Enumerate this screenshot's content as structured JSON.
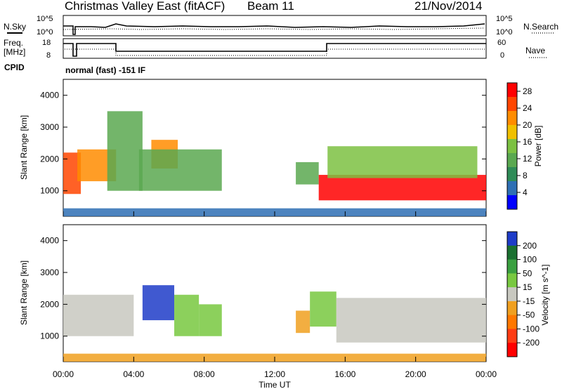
{
  "header": {
    "title": "Christmas Valley East (fitACF)",
    "beam": "Beam 11",
    "date": "21/Nov/2014"
  },
  "aux_panels": {
    "nsky_label": "N.Sky",
    "nsearch_label": "N.Search",
    "freq_label_line1": "Freq.",
    "freq_label_line2": "[MHz]",
    "nave_label": "Nave",
    "cpid_label": "CPID",
    "cpid_text": "normal (fast) -151 IF",
    "noise_tick_top": "10^5",
    "noise_tick_bottom": "10^0",
    "noise_right_tick_top": "10^5",
    "noise_right_tick_bottom": "10^0",
    "freq_tick_top": "18",
    "freq_tick_bottom": "8",
    "nave_tick_top": "60",
    "nave_tick_bottom": "0"
  },
  "colors": {
    "power_scale": [
      "#0000ff",
      "#2e6fb4",
      "#2e8b57",
      "#5aa850",
      "#7cc142",
      "#f0c000",
      "#ff8c00",
      "#ff4500",
      "#ff0000"
    ],
    "velocity_scale": [
      "#1e3cc8",
      "#1a7030",
      "#3aa040",
      "#78c840",
      "#c8c8c0",
      "#f0a020",
      "#ff7800",
      "#ff3c14",
      "#ff0000"
    ]
  },
  "chart_data": [
    {
      "type": "heatmap",
      "name": "power",
      "ylabel": "Slant Range [km]",
      "xlabel": "Time UT",
      "ylim": [
        200,
        4500
      ],
      "xlim": [
        "00:00",
        "24:00"
      ],
      "yticks": [
        "1000",
        "2000",
        "3000",
        "4000"
      ],
      "xticks": [
        "00:00",
        "04:00",
        "08:00",
        "12:00",
        "16:00",
        "20:00",
        "00:00"
      ],
      "colorbar": {
        "label": "Power [dB]",
        "ticks": [
          "4",
          "8",
          "12",
          "16",
          "20",
          "24",
          "28"
        ],
        "range": [
          0,
          30
        ]
      },
      "regions": [
        {
          "t_start": 0.0,
          "t_end": 1.0,
          "r_start": 900,
          "r_end": 2200,
          "value": 26
        },
        {
          "t_start": 0.8,
          "t_end": 3.0,
          "r_start": 1300,
          "r_end": 2300,
          "value": 20
        },
        {
          "t_start": 2.5,
          "t_end": 4.5,
          "r_start": 1000,
          "r_end": 3500,
          "value": 10
        },
        {
          "t_start": 5.0,
          "t_end": 6.5,
          "r_start": 1700,
          "r_end": 2600,
          "value": 20
        },
        {
          "t_start": 4.3,
          "t_end": 9.0,
          "r_start": 1000,
          "r_end": 2300,
          "value": 12
        },
        {
          "t_start": 13.2,
          "t_end": 14.5,
          "r_start": 1200,
          "r_end": 1900,
          "value": 10
        },
        {
          "t_start": 14.5,
          "t_end": 24.0,
          "r_start": 700,
          "r_end": 1500,
          "value": 28
        },
        {
          "t_start": 15.0,
          "t_end": 23.5,
          "r_start": 1400,
          "r_end": 2400,
          "value": 14
        },
        {
          "t_start": 0.0,
          "t_end": 24.0,
          "r_start": 200,
          "r_end": 450,
          "value": 6
        }
      ]
    },
    {
      "type": "heatmap",
      "name": "velocity",
      "ylabel": "Slant Range [km]",
      "xlabel": "Time UT",
      "ylim": [
        200,
        4500
      ],
      "xlim": [
        "00:00",
        "24:00"
      ],
      "yticks": [
        "1000",
        "2000",
        "3000",
        "4000"
      ],
      "xticks": [
        "00:00",
        "04:00",
        "08:00",
        "12:00",
        "16:00",
        "20:00",
        "00:00"
      ],
      "colorbar": {
        "label": "Velocity [m s^-1]",
        "ticks": [
          "200",
          "100",
          "50",
          "15",
          "-15",
          "-50",
          "-100",
          "-200"
        ],
        "range": [
          -250,
          250
        ]
      },
      "regions": [
        {
          "t_start": 0.0,
          "t_end": 4.0,
          "r_start": 1000,
          "r_end": 2300,
          "value": 0
        },
        {
          "t_start": 4.5,
          "t_end": 6.3,
          "r_start": 1500,
          "r_end": 2600,
          "value": 220
        },
        {
          "t_start": 6.3,
          "t_end": 7.7,
          "r_start": 1000,
          "r_end": 2300,
          "value": 80
        },
        {
          "t_start": 7.7,
          "t_end": 9.0,
          "r_start": 1000,
          "r_end": 2000,
          "value": 30
        },
        {
          "t_start": 13.2,
          "t_end": 14.0,
          "r_start": 1100,
          "r_end": 1800,
          "value": -60
        },
        {
          "t_start": 14.0,
          "t_end": 15.5,
          "r_start": 1300,
          "r_end": 2400,
          "value": 30
        },
        {
          "t_start": 15.5,
          "t_end": 24.0,
          "r_start": 800,
          "r_end": 2200,
          "value": 0
        },
        {
          "t_start": 0.0,
          "t_end": 24.0,
          "r_start": 200,
          "r_end": 450,
          "value": -40
        }
      ]
    }
  ]
}
